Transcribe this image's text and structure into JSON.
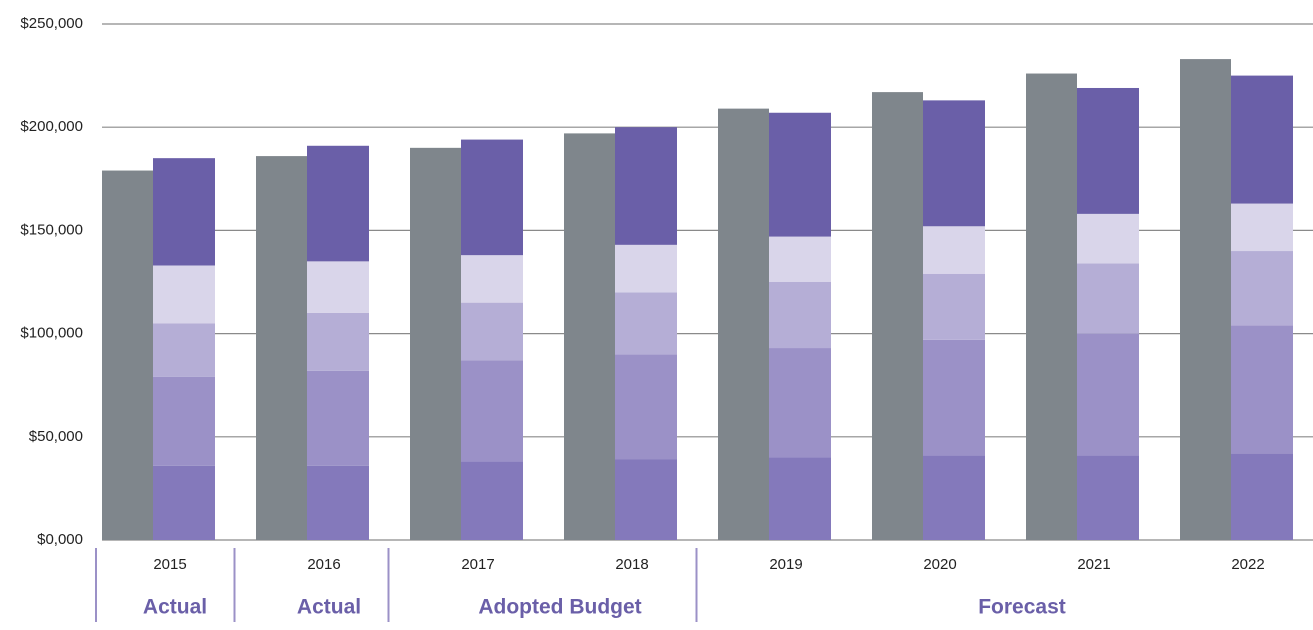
{
  "chart_data": {
    "type": "bar",
    "categories": [
      "2015",
      "2016",
      "2017",
      "2018",
      "2019",
      "2020",
      "2021",
      "2022"
    ],
    "series": [
      {
        "color": "#7f868c",
        "stack": 0,
        "values": [
          179000,
          186000,
          190000,
          197000,
          209000,
          217000,
          226000,
          233000
        ]
      },
      {
        "color": "#8479bb",
        "stack": 1,
        "values": [
          36000,
          36000,
          38000,
          39000,
          40000,
          41000,
          41000,
          42000
        ]
      },
      {
        "color": "#9b91c7",
        "stack": 1,
        "values": [
          43000,
          46000,
          49000,
          51000,
          53000,
          56000,
          59000,
          62000
        ]
      },
      {
        "color": "#b5aed6",
        "stack": 1,
        "values": [
          26000,
          28000,
          28000,
          30000,
          32000,
          32000,
          34000,
          36000
        ]
      },
      {
        "color": "#d9d5ea",
        "stack": 1,
        "values": [
          28000,
          25000,
          23000,
          23000,
          22000,
          23000,
          24000,
          23000
        ]
      },
      {
        "color": "#6a5fa8",
        "stack": 1,
        "values": [
          52000,
          56000,
          56000,
          57000,
          60000,
          61000,
          61000,
          62000
        ]
      }
    ],
    "ylim": [
      0,
      250000
    ],
    "yticks": [
      {
        "value": 0,
        "label": "$0,000"
      },
      {
        "value": 50000,
        "label": "$50,000"
      },
      {
        "value": 100000,
        "label": "$100,000"
      },
      {
        "value": 150000,
        "label": "$150,000"
      },
      {
        "value": 200000,
        "label": "$200,000"
      },
      {
        "value": 250000,
        "label": "$250,000"
      }
    ],
    "grid": true,
    "groups": [
      {
        "label": "Actual",
        "span": 1
      },
      {
        "label": "Actual",
        "span": 1
      },
      {
        "label": "Adopted Budget",
        "span": 2
      },
      {
        "label": "Forecast",
        "span": 4
      }
    ]
  }
}
